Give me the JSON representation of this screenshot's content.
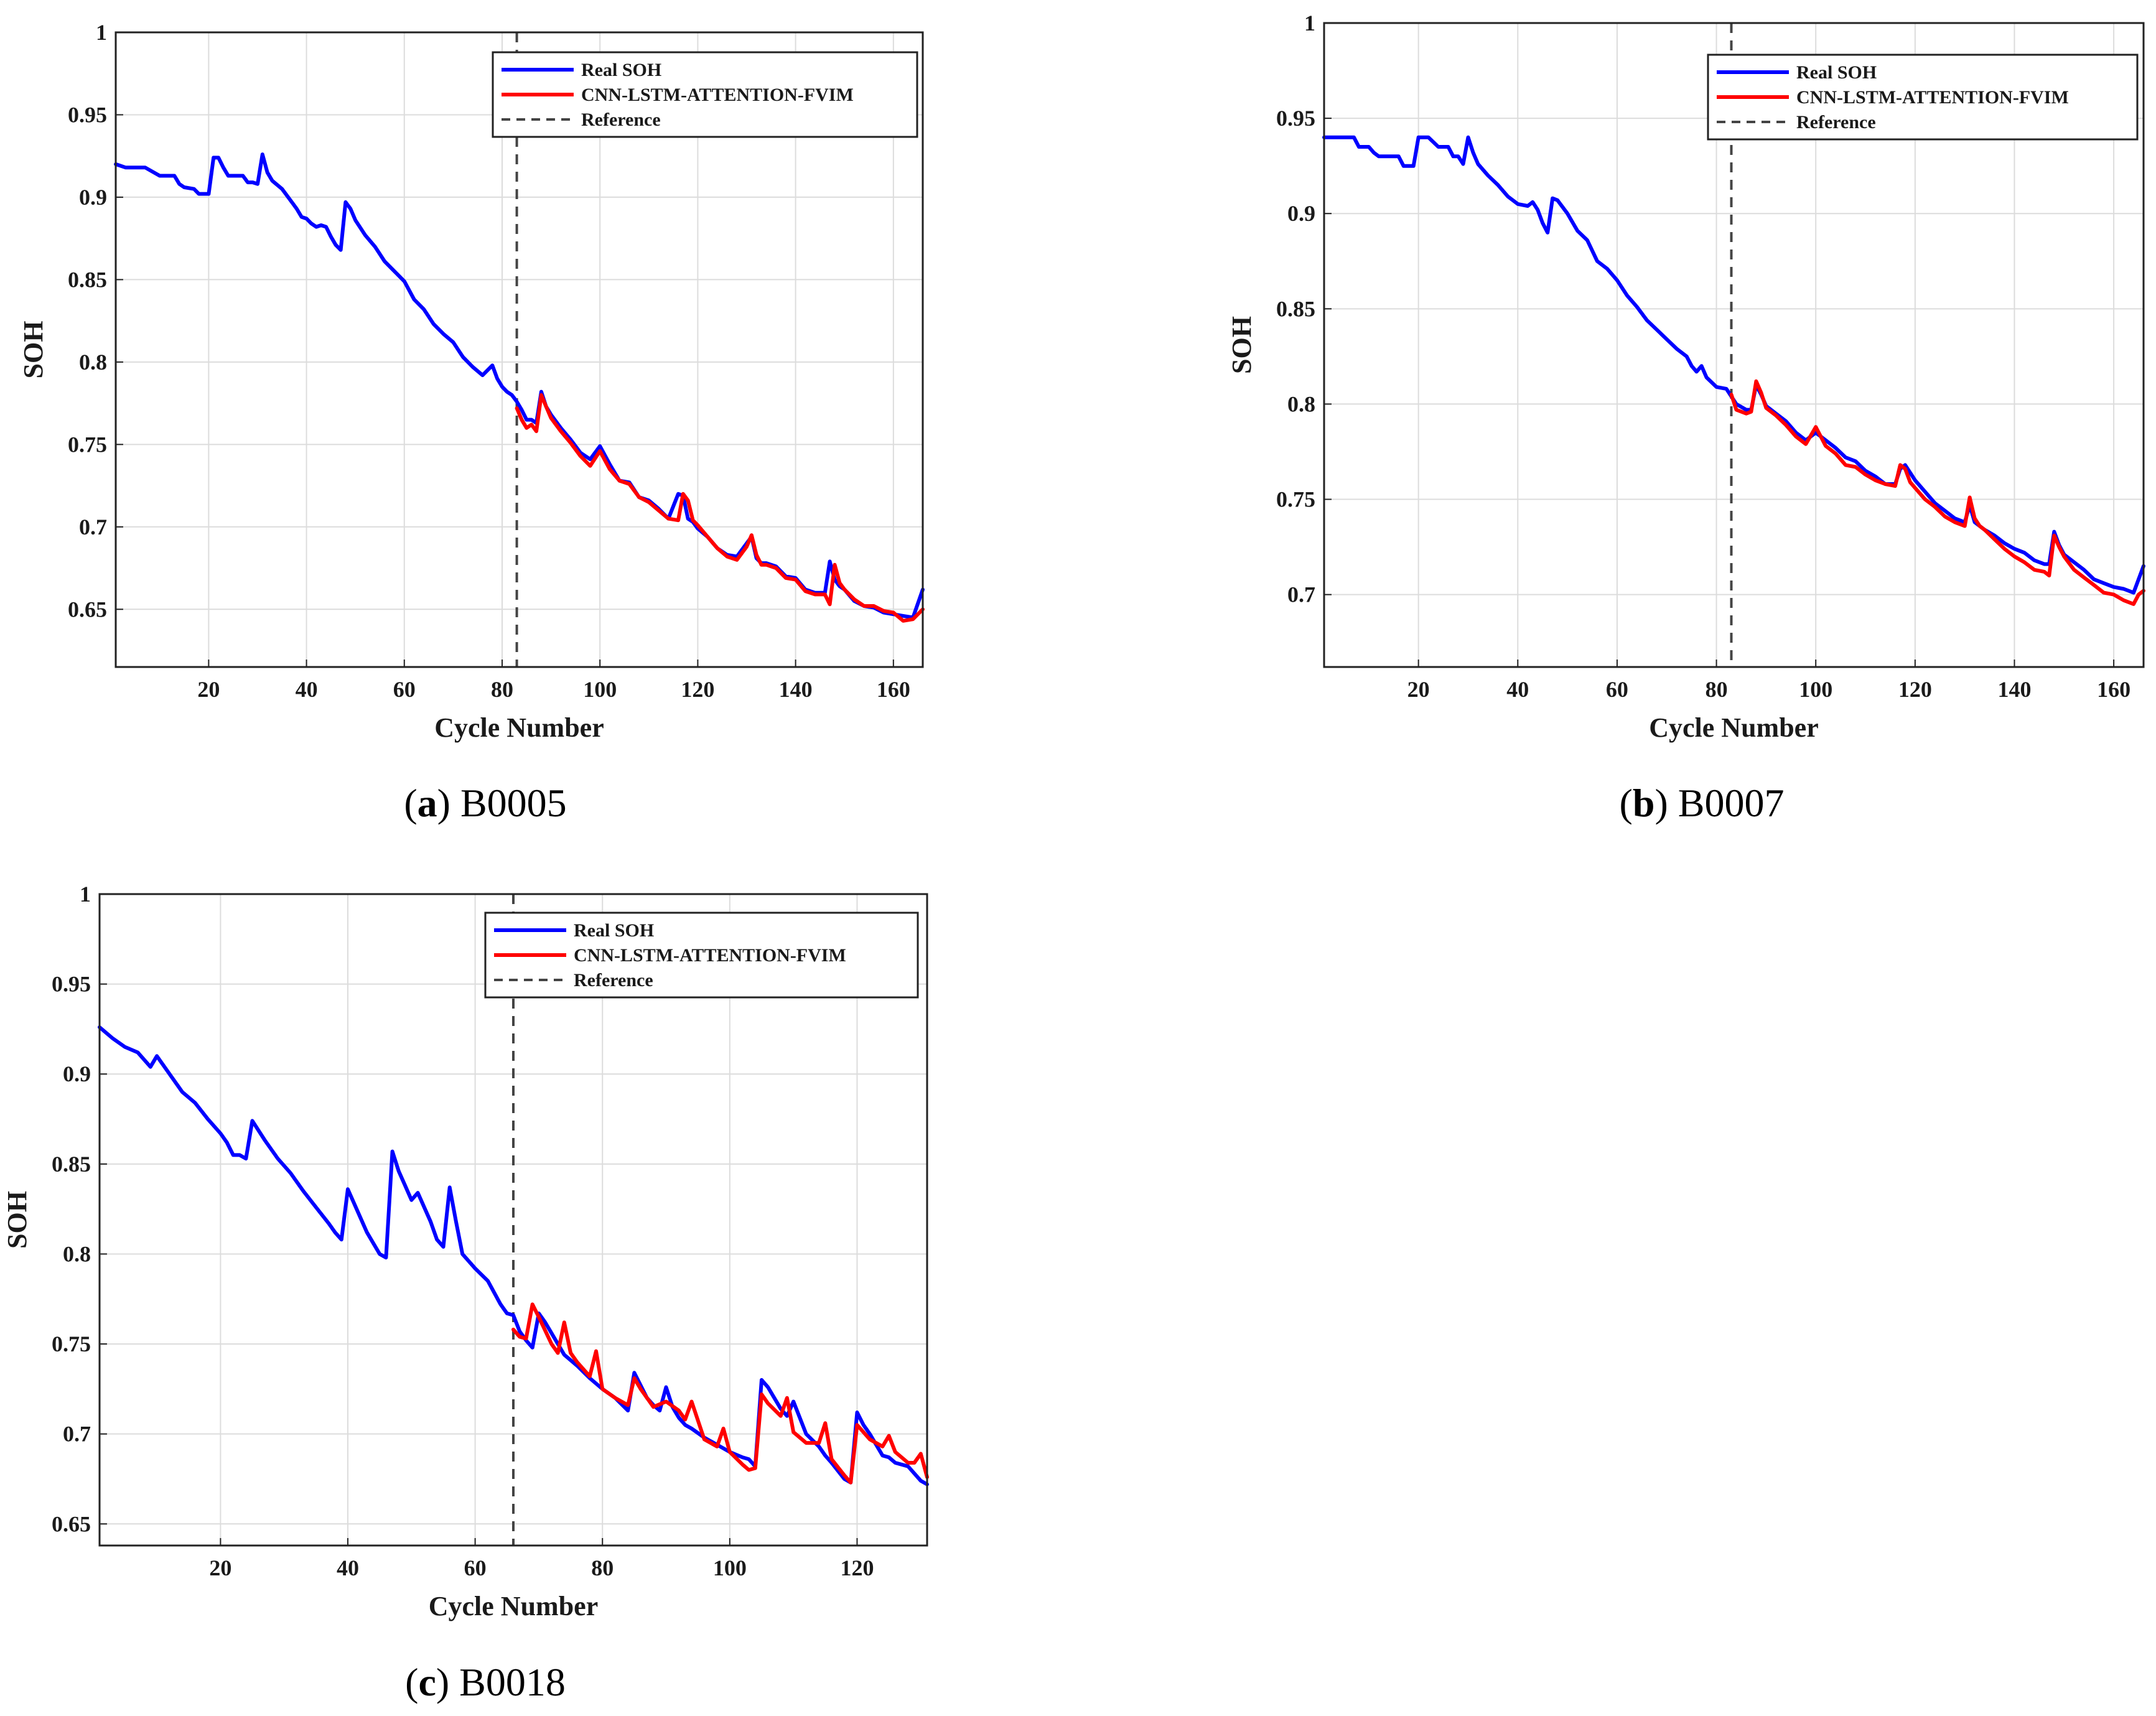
{
  "colors": {
    "real": "#0000ff",
    "pred": "#ff0000",
    "reference": "#444444",
    "grid": "#dcdcdc"
  },
  "chart_data": [
    {
      "type": "line",
      "panel": "a",
      "caption_letter": "a",
      "caption_text": "B0005",
      "xlabel": "Cycle Number",
      "ylabel": "SOH",
      "xlim": [
        1,
        166
      ],
      "ylim": [
        0.615,
        1
      ],
      "xticks": [
        20,
        40,
        60,
        80,
        100,
        120,
        140,
        160
      ],
      "yticks": [
        0.65,
        0.7,
        0.75,
        0.8,
        0.85,
        0.9,
        0.95,
        1
      ],
      "ytick_labels": [
        "0.65",
        "0.7",
        "0.75",
        "0.8",
        "0.85",
        "0.9",
        "0.95",
        "1"
      ],
      "grid": true,
      "legend_position": "top-right",
      "reference_x": 83,
      "series": [
        {
          "name": "Real SOH",
          "style": "real",
          "x": [
            1,
            3,
            5,
            6,
            7,
            10,
            12,
            13,
            14,
            15,
            17,
            18,
            19,
            20,
            21,
            22,
            23,
            24,
            25,
            26,
            27,
            28,
            29,
            30,
            31,
            32,
            33,
            35,
            37,
            38,
            39,
            40,
            41,
            42,
            43,
            44,
            45,
            46,
            47,
            48,
            49,
            50,
            52,
            54,
            56,
            58,
            60,
            62,
            64,
            66,
            68,
            70,
            72,
            74,
            76,
            78,
            79,
            80,
            81,
            82,
            83,
            84,
            85,
            86,
            87,
            88,
            89,
            90,
            92,
            94,
            96,
            98,
            100,
            102,
            104,
            106,
            108,
            110,
            112,
            114,
            116,
            117,
            118,
            119,
            120,
            122,
            124,
            126,
            128,
            130,
            131,
            132,
            133,
            134,
            136,
            138,
            140,
            142,
            144,
            146,
            147,
            148,
            149,
            150,
            152,
            154,
            156,
            158,
            160,
            162,
            164,
            166
          ],
          "y": [
            0.92,
            0.918,
            0.918,
            0.918,
            0.918,
            0.913,
            0.913,
            0.913,
            0.908,
            0.906,
            0.905,
            0.902,
            0.902,
            0.902,
            0.924,
            0.924,
            0.918,
            0.913,
            0.913,
            0.913,
            0.913,
            0.909,
            0.909,
            0.908,
            0.926,
            0.915,
            0.91,
            0.905,
            0.897,
            0.893,
            0.888,
            0.887,
            0.884,
            0.882,
            0.883,
            0.882,
            0.876,
            0.871,
            0.868,
            0.897,
            0.893,
            0.886,
            0.877,
            0.87,
            0.861,
            0.855,
            0.849,
            0.838,
            0.832,
            0.823,
            0.817,
            0.812,
            0.803,
            0.797,
            0.792,
            0.798,
            0.79,
            0.785,
            0.782,
            0.78,
            0.776,
            0.771,
            0.765,
            0.765,
            0.763,
            0.782,
            0.773,
            0.768,
            0.76,
            0.753,
            0.745,
            0.741,
            0.749,
            0.738,
            0.728,
            0.727,
            0.718,
            0.716,
            0.711,
            0.705,
            0.72,
            0.719,
            0.705,
            0.703,
            0.699,
            0.694,
            0.687,
            0.683,
            0.682,
            0.69,
            0.694,
            0.681,
            0.678,
            0.678,
            0.676,
            0.67,
            0.669,
            0.662,
            0.66,
            0.66,
            0.679,
            0.668,
            0.664,
            0.662,
            0.655,
            0.652,
            0.651,
            0.648,
            0.647,
            0.646,
            0.645,
            0.662
          ]
        },
        {
          "name": "CNN-LSTM-ATTENTION-FVIM",
          "style": "pred",
          "x": [
            83,
            84,
            85,
            86,
            87,
            88,
            89,
            90,
            92,
            94,
            96,
            98,
            100,
            102,
            104,
            106,
            108,
            110,
            112,
            114,
            116,
            117,
            118,
            119,
            120,
            122,
            124,
            126,
            128,
            130,
            131,
            132,
            133,
            134,
            136,
            138,
            140,
            142,
            144,
            146,
            147,
            148,
            149,
            150,
            152,
            154,
            156,
            158,
            160,
            162,
            164,
            166
          ],
          "y": [
            0.772,
            0.765,
            0.76,
            0.762,
            0.758,
            0.78,
            0.773,
            0.766,
            0.758,
            0.751,
            0.743,
            0.737,
            0.746,
            0.735,
            0.728,
            0.726,
            0.718,
            0.715,
            0.71,
            0.705,
            0.704,
            0.72,
            0.716,
            0.704,
            0.701,
            0.694,
            0.687,
            0.682,
            0.68,
            0.688,
            0.695,
            0.683,
            0.677,
            0.677,
            0.675,
            0.669,
            0.668,
            0.661,
            0.659,
            0.659,
            0.653,
            0.677,
            0.666,
            0.662,
            0.656,
            0.652,
            0.652,
            0.649,
            0.648,
            0.643,
            0.644,
            0.65
          ]
        }
      ]
    },
    {
      "type": "line",
      "panel": "b",
      "caption_letter": "b",
      "caption_text": "B0007",
      "xlabel": "Cycle Number",
      "ylabel": "SOH",
      "xlim": [
        1,
        166
      ],
      "ylim": [
        0.662,
        1
      ],
      "xticks": [
        20,
        40,
        60,
        80,
        100,
        120,
        140,
        160
      ],
      "yticks": [
        0.7,
        0.75,
        0.8,
        0.85,
        0.9,
        0.95,
        1
      ],
      "ytick_labels": [
        "0.7",
        "0.75",
        "0.8",
        "0.85",
        "0.9",
        "0.95",
        "1"
      ],
      "grid": true,
      "legend_position": "top-right",
      "reference_x": 83,
      "series": [
        {
          "name": "Real SOH",
          "style": "real",
          "x": [
            1,
            3,
            5,
            7,
            8,
            10,
            11,
            12,
            14,
            16,
            17,
            18,
            19,
            20,
            21,
            22,
            24,
            26,
            27,
            28,
            29,
            30,
            31,
            32,
            34,
            36,
            38,
            40,
            42,
            43,
            44,
            45,
            46,
            47,
            48,
            50,
            52,
            54,
            56,
            58,
            60,
            62,
            64,
            66,
            68,
            70,
            72,
            74,
            75,
            76,
            77,
            78,
            80,
            82,
            84,
            86,
            87,
            88,
            89,
            90,
            92,
            94,
            96,
            98,
            100,
            102,
            104,
            106,
            108,
            110,
            112,
            114,
            116,
            117,
            118,
            119,
            120,
            122,
            124,
            126,
            128,
            130,
            131,
            132,
            133,
            134,
            136,
            138,
            140,
            142,
            144,
            146,
            147,
            148,
            149,
            150,
            152,
            154,
            156,
            158,
            160,
            162,
            164,
            166
          ],
          "y": [
            0.94,
            0.94,
            0.94,
            0.94,
            0.935,
            0.935,
            0.932,
            0.93,
            0.93,
            0.93,
            0.925,
            0.925,
            0.925,
            0.94,
            0.94,
            0.94,
            0.935,
            0.935,
            0.93,
            0.93,
            0.926,
            0.94,
            0.932,
            0.926,
            0.92,
            0.915,
            0.909,
            0.905,
            0.904,
            0.906,
            0.902,
            0.895,
            0.89,
            0.908,
            0.907,
            0.9,
            0.891,
            0.886,
            0.875,
            0.871,
            0.865,
            0.857,
            0.851,
            0.844,
            0.839,
            0.834,
            0.829,
            0.825,
            0.82,
            0.817,
            0.82,
            0.814,
            0.809,
            0.808,
            0.8,
            0.797,
            0.797,
            0.81,
            0.805,
            0.799,
            0.795,
            0.791,
            0.785,
            0.781,
            0.785,
            0.781,
            0.777,
            0.772,
            0.77,
            0.765,
            0.762,
            0.758,
            0.758,
            0.766,
            0.768,
            0.764,
            0.76,
            0.754,
            0.748,
            0.744,
            0.74,
            0.738,
            0.747,
            0.738,
            0.736,
            0.734,
            0.731,
            0.727,
            0.724,
            0.722,
            0.718,
            0.716,
            0.716,
            0.733,
            0.726,
            0.721,
            0.717,
            0.713,
            0.708,
            0.706,
            0.704,
            0.703,
            0.701,
            0.715
          ]
        },
        {
          "name": "CNN-LSTM-ATTENTION-FVIM",
          "style": "pred",
          "x": [
            83,
            84,
            86,
            87,
            88,
            89,
            90,
            92,
            94,
            96,
            98,
            100,
            102,
            104,
            106,
            108,
            110,
            112,
            114,
            116,
            117,
            118,
            119,
            120,
            122,
            124,
            126,
            128,
            130,
            131,
            132,
            133,
            134,
            136,
            138,
            140,
            142,
            144,
            146,
            147,
            148,
            149,
            150,
            152,
            154,
            156,
            158,
            160,
            162,
            164,
            165,
            166
          ],
          "y": [
            0.805,
            0.797,
            0.795,
            0.796,
            0.812,
            0.806,
            0.798,
            0.794,
            0.789,
            0.783,
            0.779,
            0.788,
            0.778,
            0.774,
            0.768,
            0.767,
            0.763,
            0.76,
            0.758,
            0.757,
            0.768,
            0.766,
            0.759,
            0.756,
            0.75,
            0.746,
            0.741,
            0.738,
            0.736,
            0.751,
            0.74,
            0.736,
            0.734,
            0.729,
            0.724,
            0.72,
            0.717,
            0.713,
            0.712,
            0.71,
            0.731,
            0.725,
            0.72,
            0.713,
            0.709,
            0.705,
            0.701,
            0.7,
            0.697,
            0.695,
            0.7,
            0.702
          ]
        }
      ]
    },
    {
      "type": "line",
      "panel": "c",
      "caption_letter": "c",
      "caption_text": "B0018",
      "xlabel": "Cycle Number",
      "ylabel": "SOH",
      "xlim": [
        1,
        131
      ],
      "ylim": [
        0.638,
        1
      ],
      "xticks": [
        20,
        40,
        60,
        80,
        100,
        120
      ],
      "yticks": [
        0.65,
        0.7,
        0.75,
        0.8,
        0.85,
        0.9,
        0.95,
        1
      ],
      "ytick_labels": [
        "0.65",
        "0.7",
        "0.75",
        "0.8",
        "0.85",
        "0.9",
        "0.95",
        "1"
      ],
      "grid": true,
      "legend_position": "top-right",
      "reference_x": 66,
      "series": [
        {
          "name": "Real SOH",
          "style": "real",
          "x": [
            1,
            3,
            5,
            7,
            9,
            10,
            12,
            14,
            16,
            18,
            20,
            21,
            22,
            23,
            24,
            25,
            27,
            29,
            31,
            33,
            35,
            37,
            38,
            39,
            40,
            42,
            43,
            45,
            46,
            47,
            48,
            49,
            50,
            51,
            53,
            54,
            55,
            56,
            57,
            58,
            60,
            62,
            64,
            65,
            66,
            67,
            68,
            69,
            70,
            71,
            72,
            74,
            76,
            78,
            80,
            82,
            84,
            85,
            86,
            87,
            88,
            89,
            90,
            91,
            92,
            93,
            94,
            96,
            98,
            100,
            102,
            103,
            104,
            105,
            106,
            108,
            109,
            110,
            112,
            114,
            115,
            116,
            118,
            119,
            120,
            121,
            122,
            124,
            125,
            126,
            128,
            130,
            131
          ],
          "y": [
            0.926,
            0.92,
            0.915,
            0.912,
            0.904,
            0.91,
            0.9,
            0.89,
            0.884,
            0.875,
            0.867,
            0.862,
            0.855,
            0.855,
            0.853,
            0.874,
            0.863,
            0.853,
            0.845,
            0.835,
            0.826,
            0.817,
            0.812,
            0.808,
            0.836,
            0.82,
            0.812,
            0.8,
            0.798,
            0.857,
            0.846,
            0.838,
            0.83,
            0.834,
            0.818,
            0.808,
            0.804,
            0.837,
            0.818,
            0.8,
            0.792,
            0.785,
            0.772,
            0.767,
            0.766,
            0.757,
            0.752,
            0.748,
            0.767,
            0.762,
            0.756,
            0.744,
            0.738,
            0.731,
            0.725,
            0.72,
            0.713,
            0.734,
            0.727,
            0.72,
            0.716,
            0.713,
            0.726,
            0.715,
            0.709,
            0.705,
            0.703,
            0.698,
            0.694,
            0.69,
            0.687,
            0.686,
            0.682,
            0.73,
            0.726,
            0.714,
            0.71,
            0.718,
            0.7,
            0.693,
            0.688,
            0.684,
            0.675,
            0.673,
            0.712,
            0.705,
            0.7,
            0.688,
            0.687,
            0.684,
            0.682,
            0.674,
            0.672
          ]
        },
        {
          "name": "CNN-LSTM-ATTENTION-FVIM",
          "style": "pred",
          "x": [
            66,
            67,
            68,
            69,
            70,
            72,
            73,
            74,
            75,
            76,
            78,
            79,
            80,
            82,
            84,
            85,
            86,
            88,
            90,
            92,
            93,
            94,
            96,
            98,
            99,
            100,
            102,
            103,
            104,
            105,
            106,
            108,
            109,
            110,
            112,
            114,
            115,
            116,
            118,
            119,
            120,
            122,
            124,
            125,
            126,
            128,
            129,
            130,
            131
          ],
          "y": [
            0.758,
            0.754,
            0.753,
            0.772,
            0.765,
            0.75,
            0.745,
            0.762,
            0.745,
            0.74,
            0.732,
            0.746,
            0.725,
            0.72,
            0.716,
            0.731,
            0.725,
            0.715,
            0.718,
            0.713,
            0.708,
            0.718,
            0.697,
            0.693,
            0.703,
            0.69,
            0.683,
            0.68,
            0.681,
            0.722,
            0.717,
            0.71,
            0.72,
            0.701,
            0.695,
            0.695,
            0.706,
            0.686,
            0.677,
            0.673,
            0.705,
            0.697,
            0.693,
            0.699,
            0.69,
            0.684,
            0.684,
            0.689,
            0.676
          ]
        }
      ]
    }
  ]
}
